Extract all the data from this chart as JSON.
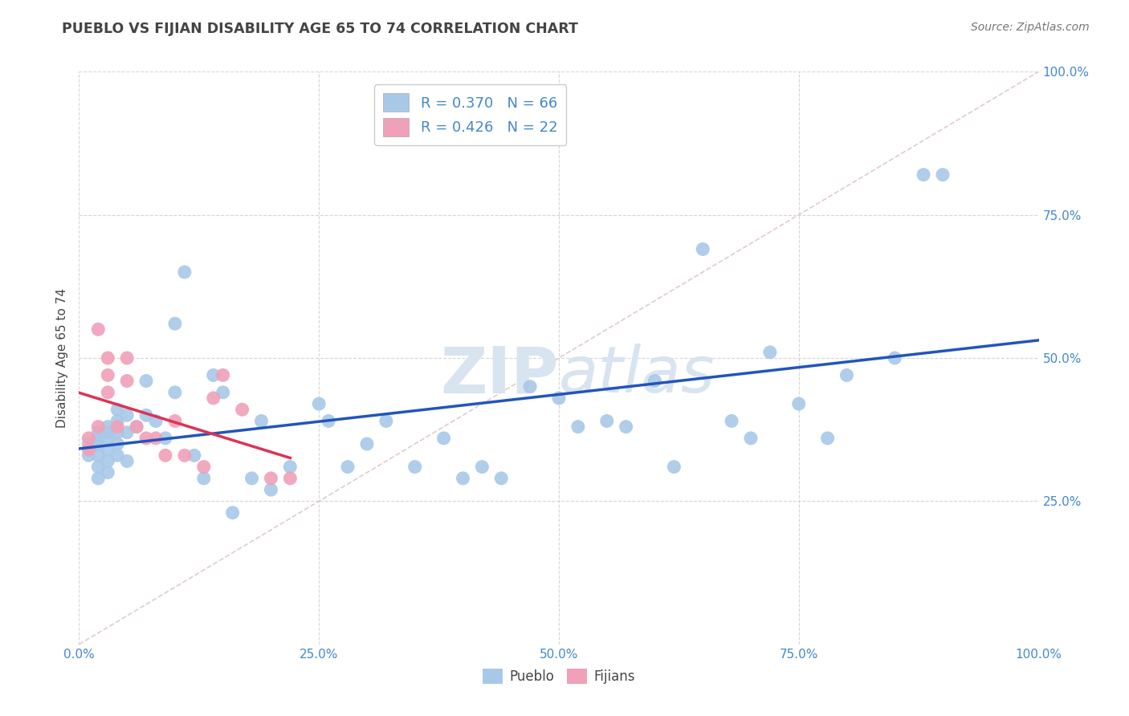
{
  "title": "PUEBLO VS FIJIAN DISABILITY AGE 65 TO 74 CORRELATION CHART",
  "source": "Source: ZipAtlas.com",
  "xlabel_ticks": [
    "0.0%",
    "25.0%",
    "50.0%",
    "75.0%",
    "100.0%"
  ],
  "ylabel_ticks": [
    "25.0%",
    "50.0%",
    "75.0%",
    "100.0%"
  ],
  "xlabel_vals": [
    0.0,
    0.25,
    0.5,
    0.75,
    1.0
  ],
  "ylabel_vals": [
    0.25,
    0.5,
    0.75,
    1.0
  ],
  "ylim_min": 0.0,
  "ylim_max": 1.0,
  "pueblo_R": 0.37,
  "pueblo_N": 66,
  "fijian_R": 0.426,
  "fijian_N": 22,
  "pueblo_color": "#a8c8e8",
  "fijian_color": "#f0a0b8",
  "trend_pueblo_color": "#2255bb",
  "trend_fijian_color": "#dd3355",
  "identity_color": "#ccaaaa",
  "watermark_color": "#d8e4f0",
  "pueblo_x": [
    0.01,
    0.01,
    0.02,
    0.02,
    0.02,
    0.02,
    0.02,
    0.02,
    0.03,
    0.03,
    0.03,
    0.03,
    0.03,
    0.03,
    0.04,
    0.04,
    0.04,
    0.04,
    0.04,
    0.05,
    0.05,
    0.05,
    0.06,
    0.07,
    0.07,
    0.08,
    0.09,
    0.1,
    0.1,
    0.11,
    0.12,
    0.13,
    0.14,
    0.15,
    0.16,
    0.18,
    0.19,
    0.2,
    0.22,
    0.25,
    0.26,
    0.28,
    0.3,
    0.32,
    0.35,
    0.38,
    0.4,
    0.42,
    0.44,
    0.47,
    0.5,
    0.52,
    0.55,
    0.57,
    0.6,
    0.62,
    0.65,
    0.68,
    0.7,
    0.72,
    0.75,
    0.78,
    0.8,
    0.85,
    0.88,
    0.9
  ],
  "pueblo_y": [
    0.33,
    0.35,
    0.37,
    0.36,
    0.35,
    0.33,
    0.31,
    0.29,
    0.38,
    0.37,
    0.36,
    0.34,
    0.32,
    0.3,
    0.41,
    0.39,
    0.37,
    0.35,
    0.33,
    0.4,
    0.37,
    0.32,
    0.38,
    0.46,
    0.4,
    0.39,
    0.36,
    0.56,
    0.44,
    0.65,
    0.33,
    0.29,
    0.47,
    0.44,
    0.23,
    0.29,
    0.39,
    0.27,
    0.31,
    0.42,
    0.39,
    0.31,
    0.35,
    0.39,
    0.31,
    0.36,
    0.29,
    0.31,
    0.29,
    0.45,
    0.43,
    0.38,
    0.39,
    0.38,
    0.46,
    0.31,
    0.69,
    0.39,
    0.36,
    0.51,
    0.42,
    0.36,
    0.47,
    0.5,
    0.82,
    0.82
  ],
  "fijian_x": [
    0.01,
    0.01,
    0.02,
    0.02,
    0.03,
    0.03,
    0.03,
    0.04,
    0.05,
    0.05,
    0.06,
    0.07,
    0.08,
    0.09,
    0.1,
    0.11,
    0.13,
    0.14,
    0.15,
    0.17,
    0.2,
    0.22
  ],
  "fijian_y": [
    0.36,
    0.34,
    0.55,
    0.38,
    0.5,
    0.47,
    0.44,
    0.38,
    0.5,
    0.46,
    0.38,
    0.36,
    0.36,
    0.33,
    0.39,
    0.33,
    0.31,
    0.43,
    0.47,
    0.41,
    0.29,
    0.29
  ]
}
